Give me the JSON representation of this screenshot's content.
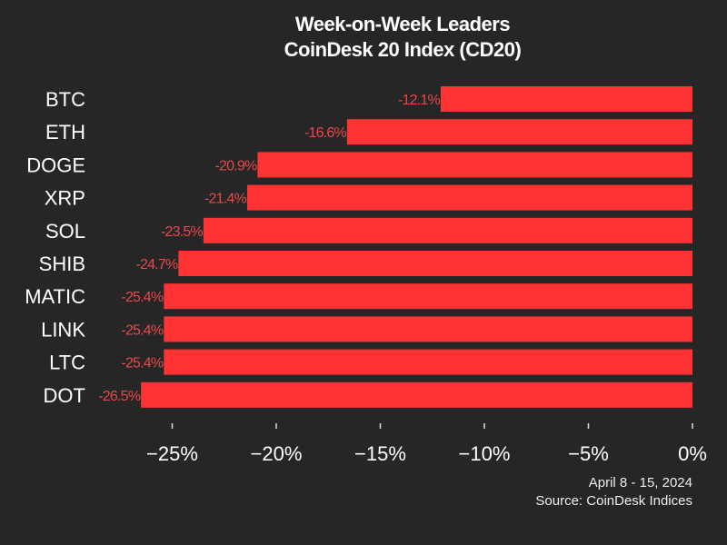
{
  "chart_data": {
    "type": "bar",
    "orientation": "horizontal",
    "title": "Week-on-Week Leaders",
    "subtitle": "CoinDesk 20 Index (CD20)",
    "categories": [
      "BTC",
      "ETH",
      "DOGE",
      "XRP",
      "SOL",
      "SHIB",
      "MATIC",
      "LINK",
      "LTC",
      "DOT"
    ],
    "values": [
      -12.1,
      -16.6,
      -20.9,
      -21.4,
      -23.5,
      -24.7,
      -25.4,
      -25.4,
      -25.4,
      -26.5
    ],
    "data_labels": [
      "-12.1%",
      "-16.6%",
      "-20.9%",
      "-21.4%",
      "-23.5%",
      "-24.7%",
      "-25.4%",
      "-25.4%",
      "-25.4%",
      "-26.5%"
    ],
    "xlim": [
      -27.5,
      0
    ],
    "xticks": [
      -25,
      -20,
      -15,
      -10,
      -5,
      0
    ],
    "xtick_labels": [
      "−25%",
      "−20%",
      "−15%",
      "−10%",
      "−5%",
      "0%"
    ],
    "grid": false,
    "xlabel": "",
    "ylabel": ""
  },
  "footer": {
    "date_range": "April 8 - 15, 2024",
    "source": "Source: CoinDesk Indices"
  },
  "colors": {
    "background": "#262626",
    "bar": "#ff3333",
    "data_label": "#e8484a",
    "text": "#ffffff"
  }
}
